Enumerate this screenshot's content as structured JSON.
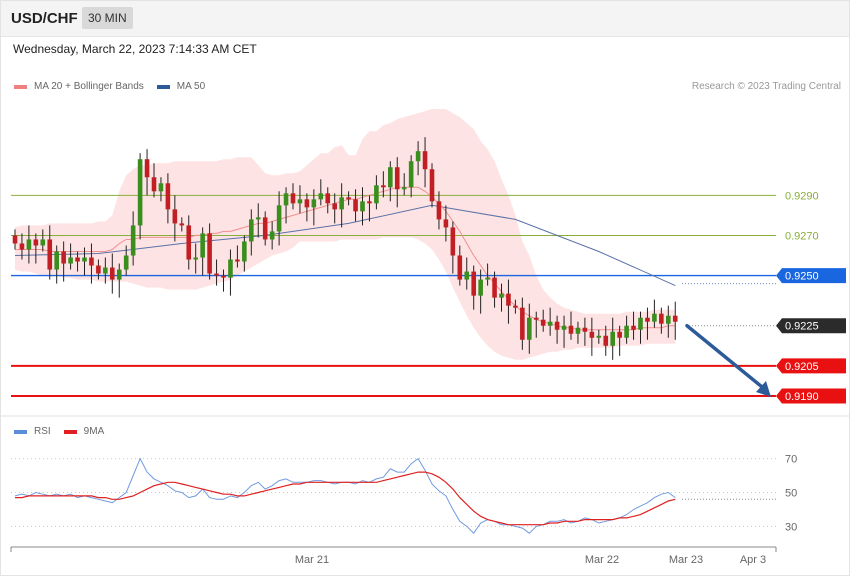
{
  "header": {
    "symbol": "USD/CHF",
    "timeframe": "30 MIN",
    "timestamp": "Wednesday, March 22, 2023 7:14:33 AM CET"
  },
  "legend": {
    "main": [
      {
        "label": "MA 20 + Bollinger Bands",
        "color": "#f08080"
      },
      {
        "label": "MA 50",
        "color": "#2c5a9a"
      }
    ],
    "rsi": [
      {
        "label": "RSI",
        "color": "#5b8ed8"
      },
      {
        "label": "9MA",
        "color": "#e02020"
      }
    ]
  },
  "copyright": "Research © 2023 Trading Central",
  "chart_data": [
    {
      "type": "candlestick",
      "ylim": [
        0.9182,
        0.934
      ],
      "xlabels": [
        "Mar 21",
        "Mar 22",
        "Mar 23",
        "Apr 3"
      ],
      "levels": [
        {
          "value": 0.929,
          "label": "0.9290",
          "kind": "resistance-minor",
          "color": "#8aae3a"
        },
        {
          "value": 0.927,
          "label": "0.9270",
          "kind": "resistance-minor",
          "color": "#8aae3a"
        },
        {
          "value": 0.925,
          "label": "0.9250",
          "kind": "pivot",
          "color": "#1a66e0"
        },
        {
          "value": 0.9225,
          "label": "0.9225",
          "kind": "last-price",
          "color": "#2b2b2b"
        },
        {
          "value": 0.9205,
          "label": "0.9205",
          "kind": "support",
          "color": "#e81010"
        },
        {
          "value": 0.919,
          "label": "0.9190",
          "kind": "support",
          "color": "#e81010"
        }
      ],
      "closes": [
        0.9266,
        0.9263,
        0.9268,
        0.9265,
        0.9268,
        0.9253,
        0.9262,
        0.9256,
        0.9259,
        0.9257,
        0.9259,
        0.9255,
        0.9251,
        0.9254,
        0.9248,
        0.9253,
        0.926,
        0.9275,
        0.9308,
        0.9299,
        0.9292,
        0.9296,
        0.9283,
        0.9276,
        0.9275,
        0.9258,
        0.9259,
        0.9271,
        0.9251,
        0.925,
        0.9249,
        0.9258,
        0.9257,
        0.9267,
        0.9278,
        0.9279,
        0.9268,
        0.9272,
        0.9285,
        0.9291,
        0.9286,
        0.9288,
        0.9284,
        0.9288,
        0.9291,
        0.9286,
        0.9283,
        0.9289,
        0.9288,
        0.9282,
        0.9287,
        0.9286,
        0.9295,
        0.9294,
        0.9304,
        0.9293,
        0.9294,
        0.9307,
        0.9312,
        0.9303,
        0.9287,
        0.9278,
        0.9274,
        0.926,
        0.9248,
        0.9252,
        0.924,
        0.9248,
        0.9249,
        0.9239,
        0.9241,
        0.9235,
        0.9234,
        0.9218,
        0.9229,
        0.9228,
        0.9225,
        0.9227,
        0.9223,
        0.9225,
        0.9221,
        0.9224,
        0.9222,
        0.9219,
        0.922,
        0.9215,
        0.9222,
        0.9219,
        0.9225,
        0.9223,
        0.9229,
        0.9227,
        0.9231,
        0.9226,
        0.923,
        0.9227
      ],
      "bb_upper": [
        0.9274,
        0.9275,
        0.9275,
        0.9275,
        0.9275,
        0.9276,
        0.9276,
        0.9276,
        0.9276,
        0.9276,
        0.9276,
        0.9276,
        0.9277,
        0.9277,
        0.928,
        0.9292,
        0.93,
        0.9303,
        0.9305,
        0.9305,
        0.9306,
        0.9306,
        0.9306,
        0.9307,
        0.9307,
        0.9307,
        0.9307,
        0.9307,
        0.9307,
        0.9307,
        0.9308,
        0.9308,
        0.9309,
        0.9309,
        0.9309,
        0.9305,
        0.9301,
        0.93,
        0.93,
        0.9301,
        0.9301,
        0.9302,
        0.9305,
        0.9308,
        0.9311,
        0.9311,
        0.9314,
        0.9315,
        0.931,
        0.931,
        0.9318,
        0.9322,
        0.9322,
        0.9325,
        0.9326,
        0.9328,
        0.9329,
        0.933,
        0.9331,
        0.9332,
        0.9333,
        0.9333,
        0.9333,
        0.9331,
        0.9329,
        0.9326,
        0.9323,
        0.9317,
        0.9313,
        0.9307,
        0.9298,
        0.929,
        0.928,
        0.9267,
        0.926,
        0.925,
        0.9243,
        0.9239,
        0.9236,
        0.9234,
        0.9233,
        0.9232,
        0.9231,
        0.9231,
        0.9231,
        0.9231,
        0.9231,
        0.9231,
        0.9232,
        0.9232,
        0.9232,
        0.9232,
        0.9233,
        0.9233,
        0.9233,
        0.9233
      ],
      "bb_lower": [
        0.9253,
        0.9252,
        0.9252,
        0.9251,
        0.925,
        0.925,
        0.925,
        0.9249,
        0.9249,
        0.9248,
        0.9248,
        0.9248,
        0.9247,
        0.9247,
        0.9247,
        0.9247,
        0.9247,
        0.9246,
        0.9245,
        0.9244,
        0.9244,
        0.9244,
        0.9243,
        0.9243,
        0.9243,
        0.9243,
        0.9243,
        0.9244,
        0.9245,
        0.9246,
        0.9247,
        0.9248,
        0.925,
        0.9252,
        0.9254,
        0.9256,
        0.9258,
        0.926,
        0.9261,
        0.9262,
        0.9264,
        0.9267,
        0.9267,
        0.9267,
        0.9267,
        0.9267,
        0.9267,
        0.9268,
        0.9268,
        0.9268,
        0.9268,
        0.9268,
        0.9268,
        0.9269,
        0.9269,
        0.9269,
        0.9269,
        0.9269,
        0.9268,
        0.9266,
        0.9263,
        0.9258,
        0.9252,
        0.9244,
        0.9237,
        0.923,
        0.9224,
        0.9219,
        0.9215,
        0.9212,
        0.921,
        0.9209,
        0.9208,
        0.9208,
        0.9209,
        0.921,
        0.9211,
        0.9212,
        0.9212,
        0.9213,
        0.9213,
        0.9214,
        0.9214,
        0.9214,
        0.9214,
        0.9214,
        0.9214,
        0.9215,
        0.9215,
        0.9215,
        0.9215,
        0.9216,
        0.9216,
        0.9216,
        0.9216,
        0.9216
      ],
      "ma20": [
        0.9263,
        0.9263,
        0.9263,
        0.9263,
        0.9263,
        0.9262,
        0.9262,
        0.9262,
        0.9262,
        0.9262,
        0.9262,
        0.9262,
        0.9262,
        0.9262,
        0.9263,
        0.9266,
        0.9268,
        0.9268,
        0.9269,
        0.9269,
        0.9269,
        0.9269,
        0.9269,
        0.9269,
        0.9269,
        0.9269,
        0.927,
        0.927,
        0.9271,
        0.9271,
        0.9272,
        0.9272,
        0.9273,
        0.9274,
        0.9275,
        0.9276,
        0.9276,
        0.9277,
        0.9278,
        0.9279,
        0.928,
        0.9281,
        0.9282,
        0.9283,
        0.9284,
        0.9285,
        0.9286,
        0.9287,
        0.9288,
        0.9288,
        0.9289,
        0.929,
        0.9291,
        0.9292,
        0.9293,
        0.9294,
        0.9294,
        0.9294,
        0.9294,
        0.9292,
        0.9289,
        0.9286,
        0.9282,
        0.9277,
        0.9272,
        0.9266,
        0.926,
        0.9255,
        0.925,
        0.9246,
        0.9242,
        0.9238,
        0.9235,
        0.9232,
        0.923,
        0.9228,
        0.9227,
        0.9226,
        0.9225,
        0.9224,
        0.9224,
        0.9223,
        0.9223,
        0.9223,
        0.9223,
        0.9223,
        0.9223,
        0.9223,
        0.9223,
        0.9223,
        0.9224,
        0.9224,
        0.9224,
        0.9224,
        0.9225,
        0.9225
      ],
      "ma50_x": [
        0,
        12,
        24,
        36,
        48,
        60,
        72,
        84,
        95
      ],
      "ma50": [
        0.926,
        0.9261,
        0.9266,
        0.927,
        0.9276,
        0.9285,
        0.9278,
        0.9262,
        0.9245
      ],
      "projection": {
        "from": 0.9225,
        "to": 0.919
      }
    },
    {
      "type": "line",
      "name": "RSI",
      "ylim": [
        22,
        78
      ],
      "levels": [
        70,
        50,
        30
      ],
      "rsi": [
        48,
        49,
        48,
        50,
        49,
        48,
        49,
        48,
        49,
        47,
        48,
        47,
        46,
        45,
        44,
        47,
        50,
        60,
        70,
        62,
        58,
        56,
        54,
        51,
        50,
        47,
        48,
        52,
        47,
        46,
        46,
        48,
        47,
        50,
        54,
        56,
        52,
        54,
        57,
        58,
        56,
        56,
        56,
        57,
        57,
        56,
        55,
        56,
        56,
        55,
        57,
        56,
        58,
        59,
        64,
        62,
        62,
        67,
        70,
        63,
        55,
        51,
        48,
        40,
        33,
        30,
        26,
        32,
        34,
        33,
        31,
        31,
        30,
        29,
        26,
        30,
        31,
        33,
        33,
        34,
        32,
        33,
        35,
        34,
        32,
        33,
        34,
        35,
        37,
        40,
        42,
        44,
        47,
        49,
        50,
        47
      ],
      "rsi_ma": [
        47,
        47,
        48,
        48,
        48,
        48,
        48,
        48,
        48,
        48,
        48,
        48,
        47,
        47,
        46,
        46,
        47,
        48,
        50,
        52,
        54,
        55,
        56,
        56,
        55,
        54,
        53,
        52,
        51,
        50,
        49,
        49,
        48,
        48,
        49,
        50,
        51,
        52,
        53,
        54,
        55,
        55,
        56,
        56,
        56,
        56,
        56,
        56,
        56,
        56,
        56,
        56,
        56,
        57,
        58,
        59,
        60,
        61,
        62,
        62,
        61,
        59,
        56,
        52,
        47,
        43,
        39,
        36,
        34,
        33,
        32,
        31,
        31,
        31,
        31,
        31,
        31,
        32,
        32,
        33,
        33,
        33,
        34,
        34,
        34,
        34,
        34,
        35,
        35,
        36,
        37,
        39,
        41,
        43,
        45,
        46
      ]
    }
  ]
}
